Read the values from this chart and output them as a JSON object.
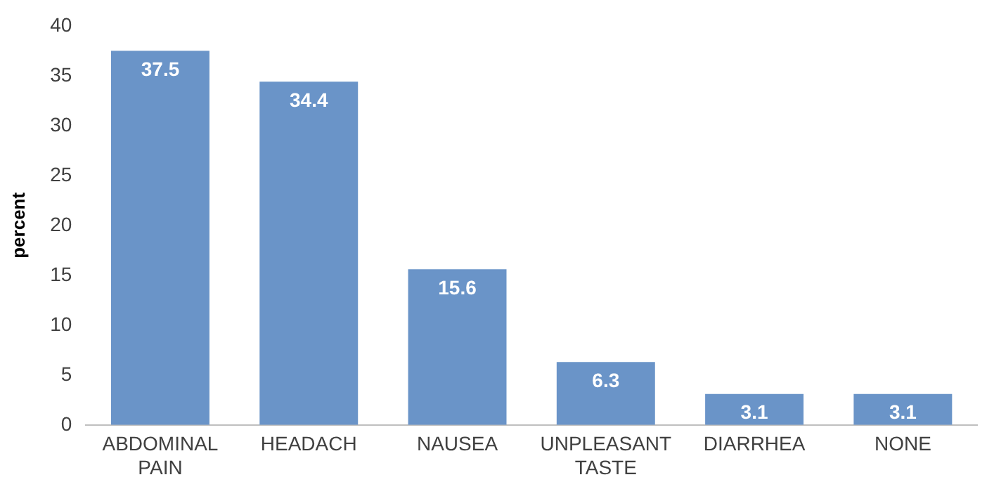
{
  "chart_data": {
    "type": "bar",
    "ylabel": "percent",
    "categories": [
      "ABDOMINAL PAIN",
      "HEADACH",
      "NAUSEA",
      "UNPLEASANT TASTE",
      "DIARRHEA",
      "NONE"
    ],
    "values": [
      37.5,
      34.4,
      15.6,
      6.3,
      3.1,
      3.1
    ],
    "color": "#6a94c8",
    "ylim": [
      0,
      40
    ],
    "yticks": [
      0,
      5,
      10,
      15,
      20,
      25,
      30,
      35,
      40
    ],
    "grid": false,
    "legend": false,
    "data_labels": true
  }
}
